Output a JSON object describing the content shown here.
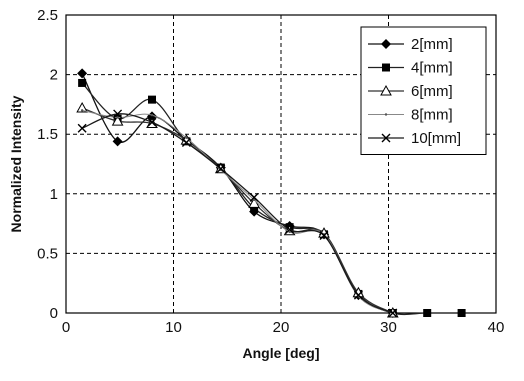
{
  "chart_data": {
    "type": "line",
    "title": "",
    "xlabel": "Angle [deg]",
    "ylabel": "Normalized Intensity",
    "xlim": [
      0,
      40
    ],
    "ylim": [
      0,
      2.5
    ],
    "xticks": [
      "0",
      "10",
      "20",
      "30",
      "40"
    ],
    "yticks": [
      "0",
      "0.5",
      "1",
      "1.5",
      "2",
      "2.5"
    ],
    "grid": "dashed, major ticks",
    "legend_position": "top-right",
    "series": [
      {
        "name": "2[mm]",
        "marker": "diamond",
        "x": [
          1.5,
          4.8,
          8.0,
          11.2,
          14.4,
          17.5,
          20.8,
          24.0,
          27.2,
          30.4
        ],
        "y": [
          2.01,
          1.44,
          1.65,
          1.45,
          1.22,
          0.85,
          0.73,
          0.66,
          0.15,
          0.0
        ]
      },
      {
        "name": "4[mm]",
        "marker": "square",
        "x": [
          1.5,
          4.8,
          8.0,
          11.2,
          14.4,
          17.5,
          20.8,
          24.0,
          27.2,
          30.4,
          33.6,
          36.8
        ],
        "y": [
          1.93,
          1.63,
          1.79,
          1.44,
          1.22,
          0.88,
          0.72,
          0.66,
          0.16,
          0.0,
          0.0,
          0.0
        ]
      },
      {
        "name": "6[mm]",
        "marker": "triangle-open",
        "x": [
          1.5,
          4.8,
          8.0,
          11.2,
          14.4,
          17.5,
          20.8,
          24.0,
          27.2,
          30.4
        ],
        "y": [
          1.72,
          1.61,
          1.59,
          1.45,
          1.21,
          0.92,
          0.69,
          0.67,
          0.17,
          0.0
        ]
      },
      {
        "name": "8[mm]",
        "marker": "dot",
        "x": [
          1.5,
          4.8,
          8.0,
          11.2,
          14.4,
          17.5,
          20.8,
          24.0,
          27.2,
          30.4
        ],
        "y": [
          1.7,
          1.64,
          1.66,
          1.47,
          1.2,
          0.95,
          0.68,
          0.66,
          0.14,
          0.0
        ]
      },
      {
        "name": "10[mm]",
        "marker": "x",
        "x": [
          1.5,
          4.8,
          8.0,
          11.2,
          14.4,
          17.5,
          20.8,
          24.0,
          27.2,
          30.4
        ],
        "y": [
          1.55,
          1.67,
          1.6,
          1.43,
          1.21,
          0.97,
          0.7,
          0.65,
          0.15,
          0.0
        ]
      }
    ]
  }
}
